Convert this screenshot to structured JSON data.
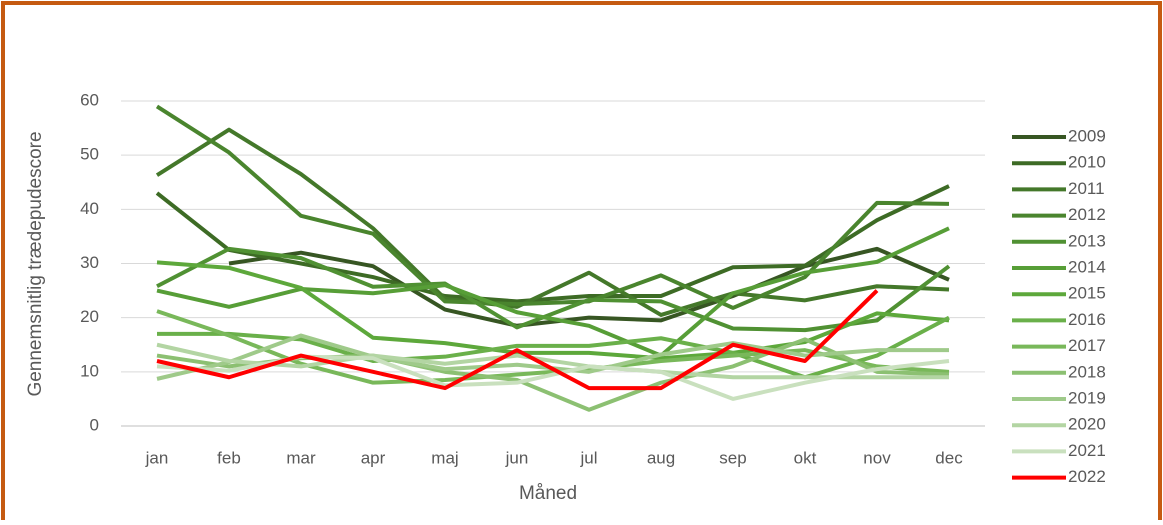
{
  "chart_data": {
    "type": "line",
    "xlabel": "Måned",
    "ylabel": "Gennemsnitlig trædepudescore",
    "categories": [
      "jan",
      "feb",
      "mar",
      "apr",
      "maj",
      "jun",
      "jul",
      "aug",
      "sep",
      "okt",
      "nov",
      "dec"
    ],
    "ylim": [
      0,
      60
    ],
    "yticks": [
      0,
      10,
      20,
      30,
      40,
      50,
      60
    ],
    "grid": true,
    "legend": "right",
    "series": [
      {
        "name": "2009",
        "color": "#375623",
        "values": [
          null,
          30,
          32,
          29.5,
          21.5,
          18.5,
          20,
          19.5,
          24,
          29.5,
          32.7,
          27
        ]
      },
      {
        "name": "2010",
        "color": "#3d6b25",
        "values": [
          43,
          32.5,
          30,
          27.5,
          24,
          23,
          24,
          24,
          29.3,
          29.6,
          38,
          44.3
        ]
      },
      {
        "name": "2011",
        "color": "#44782a",
        "values": [
          46.3,
          54.7,
          46.5,
          36.5,
          23.5,
          22,
          28.3,
          20.5,
          24.5,
          23.2,
          25.8,
          25.2
        ]
      },
      {
        "name": "2012",
        "color": "#4a852e",
        "values": [
          59,
          50.5,
          38.8,
          35.5,
          23,
          22.5,
          23,
          27.8,
          21.8,
          27.5,
          41.2,
          41
        ]
      },
      {
        "name": "2013",
        "color": "#509133",
        "values": [
          25.8,
          32.7,
          31,
          25.7,
          26.3,
          18.2,
          23.3,
          23,
          18,
          17.7,
          19.5,
          29.5
        ]
      },
      {
        "name": "2014",
        "color": "#579e37",
        "values": [
          25,
          22,
          25.3,
          24.5,
          26,
          21,
          18.5,
          13,
          24.5,
          28.3,
          30.3,
          36.5
        ]
      },
      {
        "name": "2015",
        "color": "#5da83b",
        "values": [
          30.2,
          29.2,
          25.5,
          16.3,
          15.3,
          13.5,
          13.5,
          12.5,
          13.5,
          15.5,
          20.8,
          19.5
        ]
      },
      {
        "name": "2016",
        "color": "#6ab04a",
        "values": [
          17,
          17,
          16,
          12,
          12.8,
          14.8,
          14.8,
          16.2,
          13.5,
          9,
          13,
          20
        ]
      },
      {
        "name": "2017",
        "color": "#79b85a",
        "values": [
          21.2,
          16.7,
          11.5,
          8,
          8.5,
          9.5,
          10.5,
          12,
          13,
          14,
          11,
          10
        ]
      },
      {
        "name": "2018",
        "color": "#8cc072",
        "values": [
          13,
          11,
          12.5,
          13,
          10,
          8.5,
          3,
          8,
          11,
          16,
          10,
          9.5
        ]
      },
      {
        "name": "2019",
        "color": "#9fca8a",
        "values": [
          8.7,
          11.8,
          16.7,
          12.8,
          10.5,
          11.3,
          10,
          13.2,
          15.3,
          13,
          14,
          14
        ]
      },
      {
        "name": "2020",
        "color": "#b3d5a3",
        "values": [
          15,
          12,
          11,
          13,
          11.5,
          13,
          11,
          10,
          9,
          9,
          9,
          9
        ]
      },
      {
        "name": "2021",
        "color": "#c9e0be",
        "values": [
          11,
          10.2,
          12.8,
          12.5,
          7.5,
          8,
          11,
          10,
          5,
          8,
          10.5,
          12
        ]
      },
      {
        "name": "2022",
        "color": "#ff0000",
        "values": [
          12,
          9,
          13,
          10,
          7,
          14,
          7,
          7,
          15,
          12,
          25,
          null
        ]
      }
    ]
  }
}
